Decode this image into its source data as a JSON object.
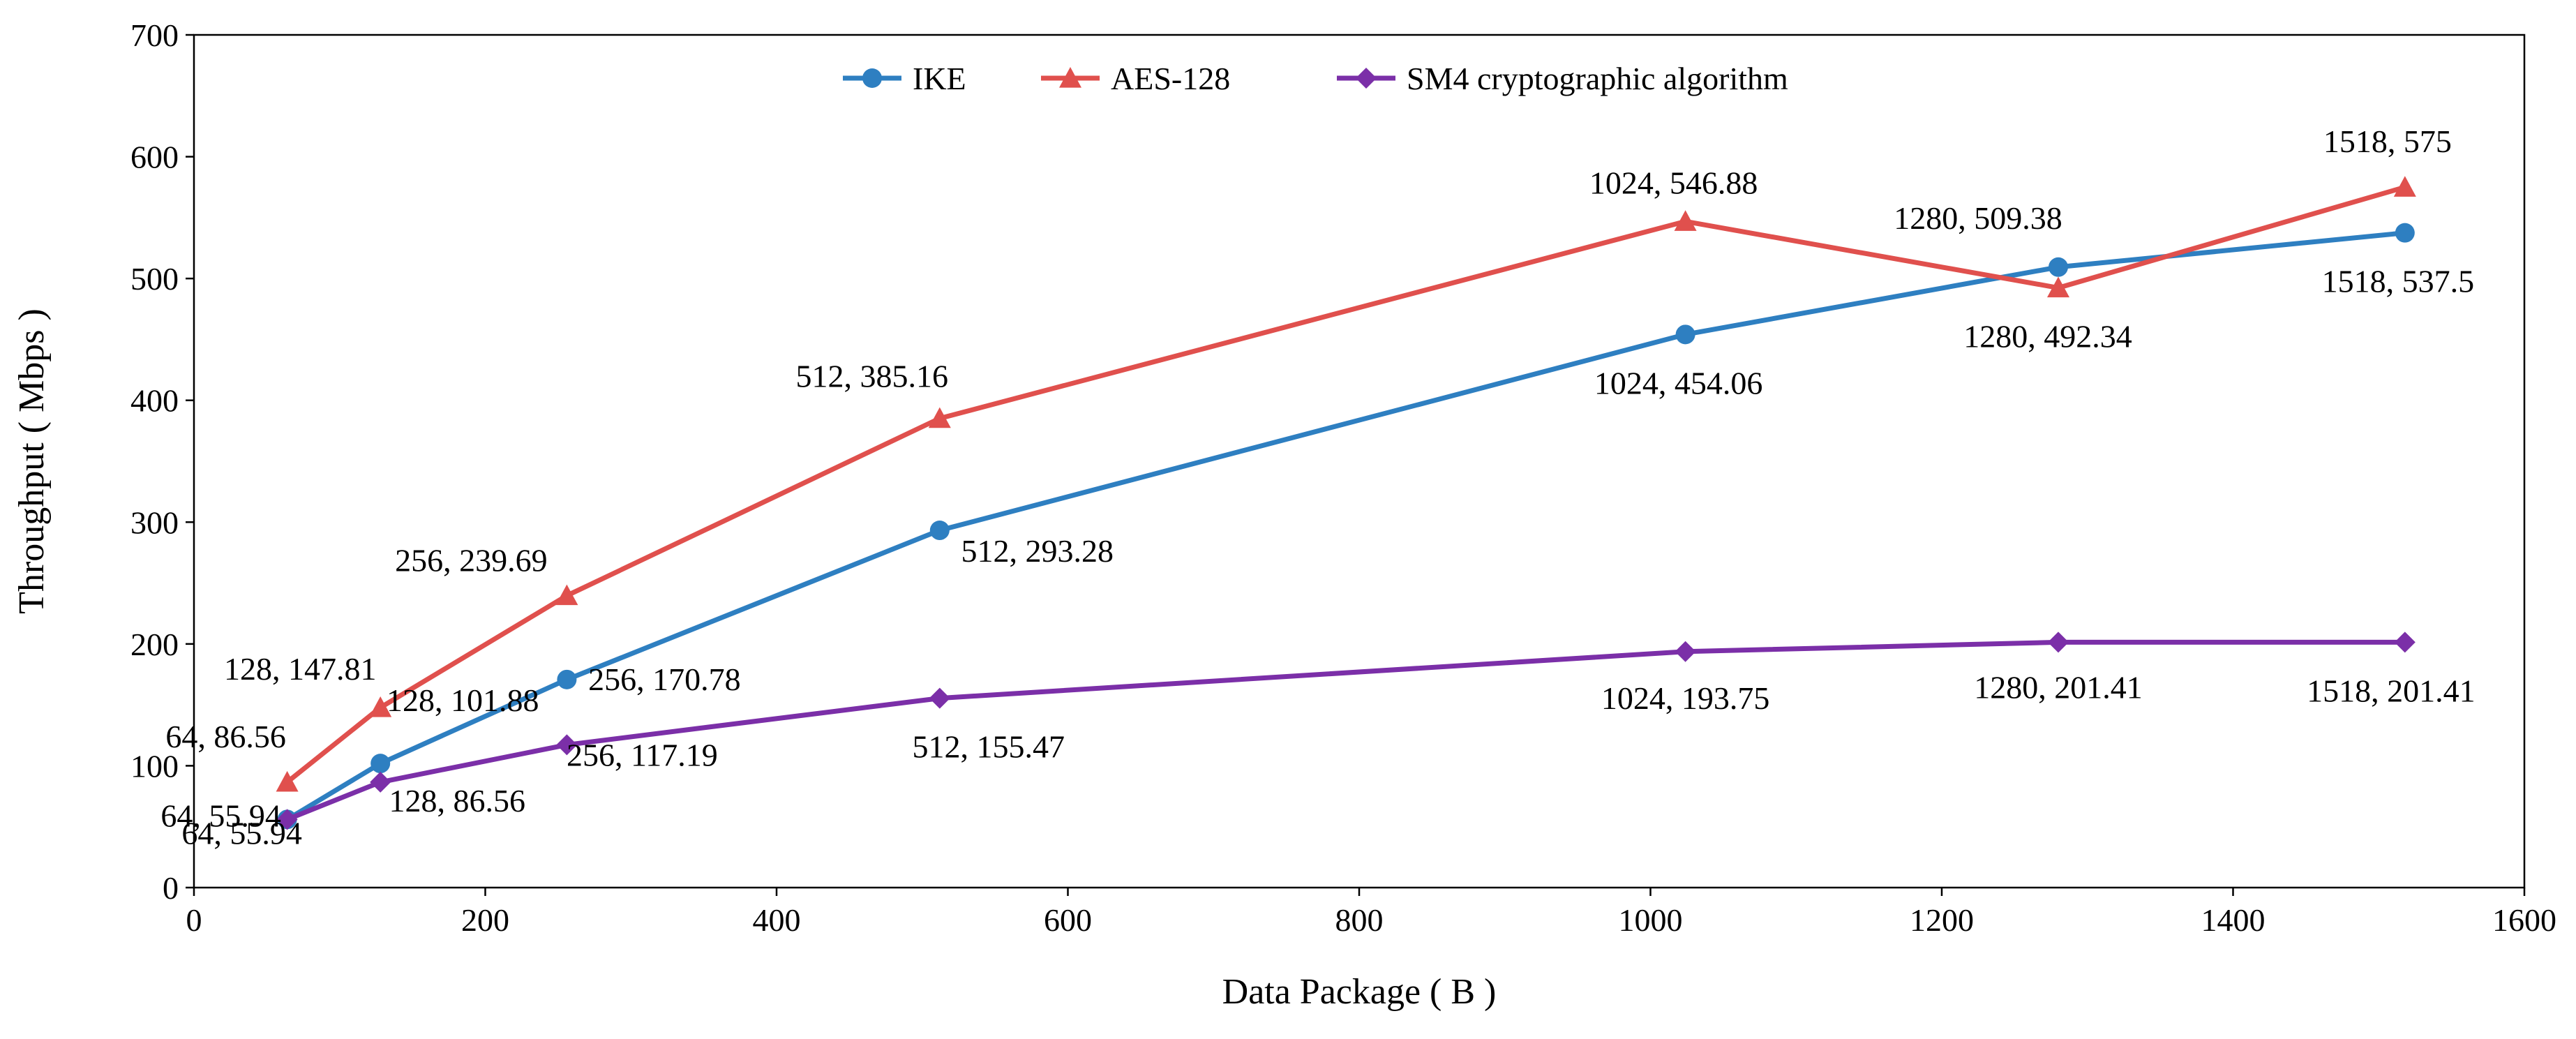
{
  "chart_data": {
    "type": "line",
    "title": "",
    "xlabel": "Data Package ( B )",
    "ylabel": "Throughput ( Mbps )",
    "xlim": [
      0,
      1600
    ],
    "ylim": [
      0,
      700
    ],
    "xticks": [
      0,
      200,
      400,
      600,
      800,
      1000,
      1200,
      1400,
      1600
    ],
    "yticks": [
      0,
      100,
      200,
      300,
      400,
      500,
      600,
      700
    ],
    "grid": false,
    "legend_position": "top-center",
    "x": [
      64,
      128,
      256,
      512,
      1024,
      1280,
      1518
    ],
    "series": [
      {
        "name": "IKE",
        "color": "#2E7FC1",
        "marker": "circle",
        "values": [
          55.94,
          101.88,
          170.78,
          293.28,
          454.06,
          509.38,
          537.5
        ],
        "labels": [
          "64, 55.94",
          "128, 101.88",
          "256, 170.78",
          "512, 293.28",
          "1024, 454.06",
          "1280, 509.38",
          "1518, 537.5"
        ]
      },
      {
        "name": "AES-128",
        "color": "#E0504D",
        "marker": "triangle",
        "values": [
          86.56,
          147.81,
          239.69,
          385.16,
          546.88,
          492.34,
          575
        ],
        "labels": [
          "64, 86.56",
          "128, 147.81",
          "256, 239.69",
          "512, 385.16",
          "1024, 546.88",
          "1280, 492.34",
          "1518, 575"
        ]
      },
      {
        "name": "SM4 cryptographic algorithm",
        "color": "#7B2FA8",
        "marker": "diamond",
        "values": [
          55.94,
          86.56,
          117.19,
          155.47,
          193.75,
          201.41,
          201.41
        ],
        "labels": [
          "64, 55.94",
          "128, 86.56",
          "256, 117.19",
          "512, 155.47",
          "1024, 193.75",
          "1280, 201.41",
          "1518, 201.41"
        ]
      }
    ]
  }
}
